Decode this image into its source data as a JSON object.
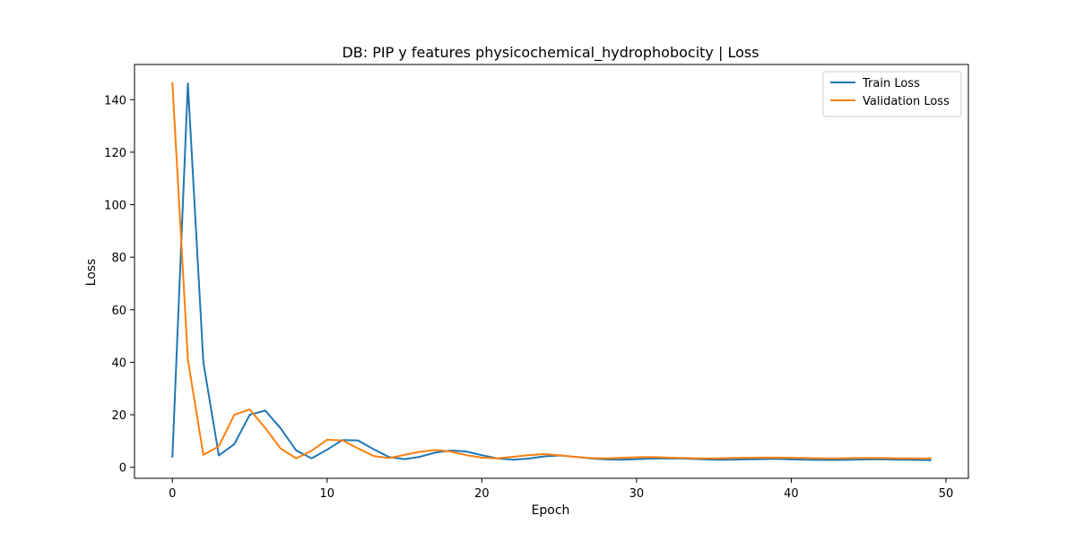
{
  "chart_data": {
    "type": "line",
    "title": "DB: PIP y features physicochemical_hydrophobocity | Loss",
    "xlabel": "Epoch",
    "ylabel": "Loss",
    "xlim": [
      -2.45,
      51.45
    ],
    "ylim": [
      -4.2,
      153.4
    ],
    "xticks": [
      0,
      10,
      20,
      30,
      40,
      50
    ],
    "yticks": [
      0,
      20,
      40,
      60,
      80,
      100,
      120,
      140
    ],
    "grid": false,
    "legend_position": "top-right",
    "x": [
      0,
      1,
      2,
      3,
      4,
      5,
      6,
      7,
      8,
      9,
      10,
      11,
      12,
      13,
      14,
      15,
      16,
      17,
      18,
      19,
      20,
      21,
      22,
      23,
      24,
      25,
      26,
      27,
      28,
      29,
      30,
      31,
      32,
      33,
      34,
      35,
      36,
      37,
      38,
      39,
      40,
      41,
      42,
      43,
      44,
      45,
      46,
      47,
      48,
      49
    ],
    "series": [
      {
        "name": "Train Loss",
        "color": "#1f77b4",
        "values": [
          4.0,
          146.2,
          40.0,
          4.5,
          8.8,
          20.0,
          21.6,
          14.8,
          6.4,
          3.4,
          6.7,
          10.4,
          10.2,
          6.9,
          3.9,
          3.1,
          4.0,
          5.6,
          6.4,
          6.0,
          4.6,
          3.4,
          2.9,
          3.3,
          4.1,
          4.5,
          4.0,
          3.4,
          3.0,
          2.9,
          3.1,
          3.3,
          3.4,
          3.3,
          3.1,
          2.9,
          2.9,
          3.0,
          3.1,
          3.2,
          3.0,
          2.9,
          2.8,
          2.8,
          2.9,
          3.0,
          3.0,
          2.9,
          2.8,
          2.7
        ]
      },
      {
        "name": "Validation Loss",
        "color": "#ff7f0e",
        "values": [
          146.3,
          41.0,
          4.7,
          8.0,
          20.0,
          22.0,
          15.0,
          7.1,
          3.4,
          6.3,
          10.5,
          10.2,
          7.2,
          4.3,
          3.5,
          4.7,
          5.9,
          6.6,
          6.0,
          4.6,
          3.7,
          3.4,
          4.0,
          4.6,
          5.0,
          4.6,
          4.0,
          3.5,
          3.4,
          3.6,
          3.8,
          3.9,
          3.7,
          3.5,
          3.4,
          3.4,
          3.5,
          3.6,
          3.7,
          3.7,
          3.6,
          3.5,
          3.4,
          3.4,
          3.5,
          3.5,
          3.5,
          3.4,
          3.4,
          3.4
        ]
      }
    ]
  }
}
